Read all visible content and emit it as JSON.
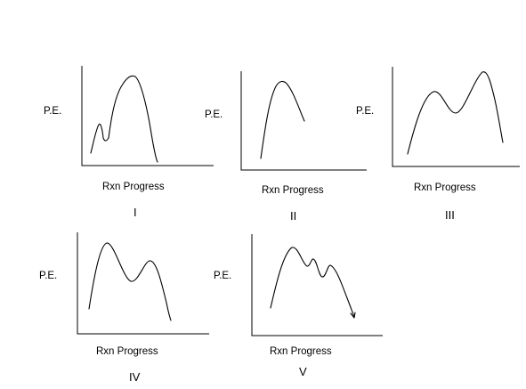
{
  "diagrams": [
    {
      "id": "I",
      "ylabel": "P.E.",
      "xlabel": "Rxn Progress",
      "numeral": "I"
    },
    {
      "id": "II",
      "ylabel": "P.E.",
      "xlabel": "Rxn Progress",
      "numeral": "II"
    },
    {
      "id": "III",
      "ylabel": "P.E.",
      "xlabel": "Rxn Progress",
      "numeral": "III"
    },
    {
      "id": "IV",
      "ylabel": "P.E.",
      "xlabel": "Rxn Progress",
      "numeral": "IV"
    },
    {
      "id": "V",
      "ylabel": "P.E.",
      "xlabel": "Rxn Progress",
      "numeral": "V"
    }
  ]
}
